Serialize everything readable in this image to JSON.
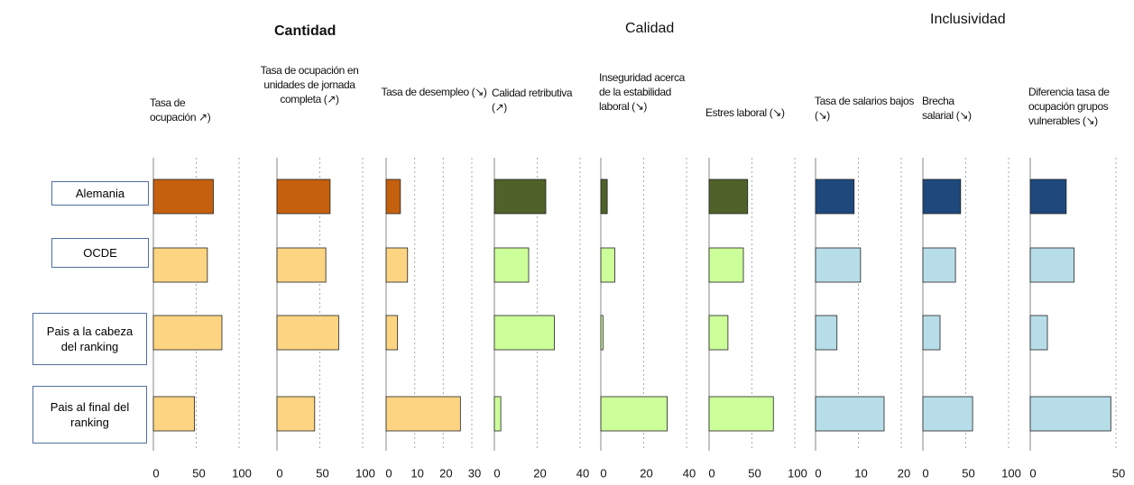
{
  "group_titles": [
    "Cantidad",
    "Calidad",
    "Inclusividad"
  ],
  "categories": [
    "Alemania",
    "OCDE",
    "Pais a la cabeza del ranking",
    "Pais al final del ranking"
  ],
  "chart_data": [
    {
      "type": "bar",
      "title": "Tasa de ocupación ↗)",
      "values": [
        70,
        63,
        80,
        48
      ],
      "colors": [
        "#c5600f",
        "#fdd582",
        "#fdd582",
        "#fdd582"
      ],
      "xlim": [
        0,
        100
      ],
      "xticks": [
        0,
        50,
        100
      ]
    },
    {
      "type": "bar",
      "title": "Tasa de ocupación en unidades de jornada completa (↗)",
      "values": [
        62,
        57,
        72,
        44
      ],
      "colors": [
        "#c5600f",
        "#fdd582",
        "#fdd582",
        "#fdd582"
      ],
      "xlim": [
        0,
        100
      ],
      "xticks": [
        0,
        50,
        100
      ]
    },
    {
      "type": "bar",
      "title": "Tasa de desempleo (↘)",
      "values": [
        5,
        7.5,
        4,
        26
      ],
      "colors": [
        "#c5600f",
        "#fdd582",
        "#fdd582",
        "#fdd582"
      ],
      "xlim": [
        0,
        30
      ],
      "xticks": [
        0,
        10,
        20,
        30
      ]
    },
    {
      "type": "bar",
      "title": "Calidad retributiva (↗)",
      "values": [
        24,
        16,
        28,
        3
      ],
      "colors": [
        "#4f6228",
        "#ccff99",
        "#ccff99",
        "#ccff99"
      ],
      "xlim": [
        0,
        40
      ],
      "xticks": [
        0,
        20,
        40
      ]
    },
    {
      "type": "bar",
      "title": "Inseguridad acerca de la estabilidad laboral (↘)",
      "values": [
        3,
        6.5,
        1,
        31
      ],
      "colors": [
        "#4f6228",
        "#ccff99",
        "#ccff99",
        "#ccff99"
      ],
      "xlim": [
        0,
        40
      ],
      "xticks": [
        0,
        20,
        40
      ]
    },
    {
      "type": "bar",
      "title": "Estres laboral (↘)",
      "values": [
        45,
        40,
        22,
        75
      ],
      "colors": [
        "#4f6228",
        "#ccff99",
        "#ccff99",
        "#ccff99"
      ],
      "xlim": [
        0,
        100
      ],
      "xticks": [
        0,
        50,
        100
      ]
    },
    {
      "type": "bar",
      "title": "Tasa de salarios bajos (↘)",
      "values": [
        9,
        10.5,
        5,
        16
      ],
      "colors": [
        "#1f497d",
        "#b7dde8",
        "#b7dde8",
        "#b7dde8"
      ],
      "xlim": [
        0,
        20
      ],
      "xticks": [
        0,
        10,
        20
      ]
    },
    {
      "type": "bar",
      "title": "Brecha salarial (↘)",
      "values": [
        44,
        38,
        20,
        58
      ],
      "colors": [
        "#1f497d",
        "#b7dde8",
        "#b7dde8",
        "#b7dde8"
      ],
      "xlim": [
        0,
        100
      ],
      "xticks": [
        0,
        50,
        100
      ]
    },
    {
      "type": "bar",
      "title": "Diferencia tasa de ocupación grupos vulnerables (↘)",
      "values": [
        21,
        25.5,
        10,
        47
      ],
      "colors": [
        "#1f497d",
        "#b7dde8",
        "#b7dde8",
        "#b7dde8"
      ],
      "xlim": [
        0,
        50
      ],
      "xticks": [
        0,
        50
      ]
    }
  ]
}
